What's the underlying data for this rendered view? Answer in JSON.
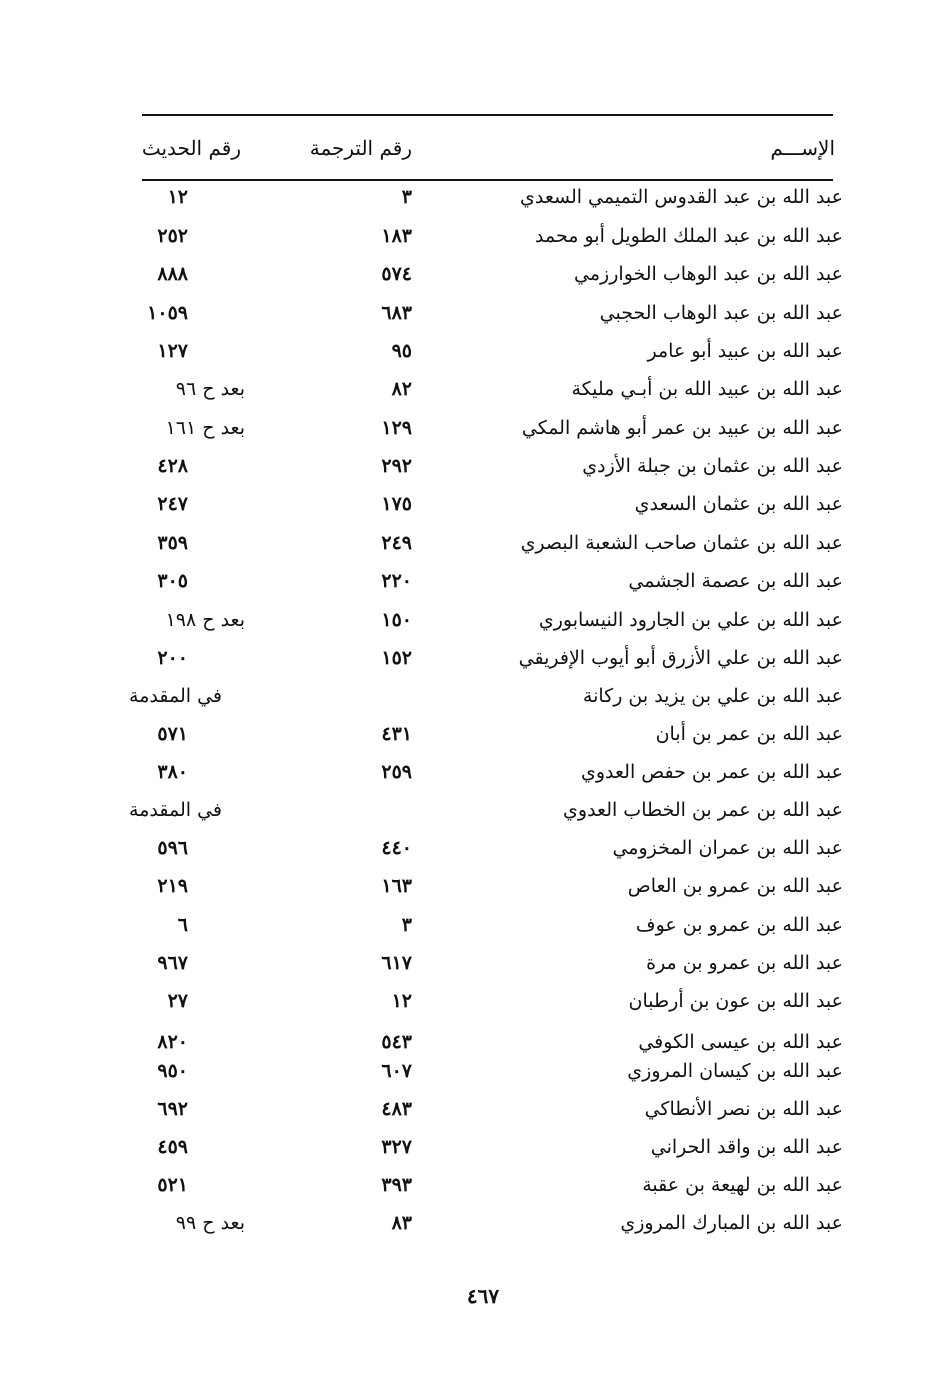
{
  "header": {
    "name": "الإســـم",
    "translation_no": "رقم الترجمة",
    "hadith_no": "رقم الحديث"
  },
  "rows": [
    {
      "name": "عبد الله بن عبد القدوس التميمي السعدي",
      "translation": "٣",
      "hadith": "١٢"
    },
    {
      "name": "عبد الله بن عبد الملك الطويل أبو محمد",
      "translation": "١٨٣",
      "hadith": "٢٥٢"
    },
    {
      "name": "عبد الله بن عبد الوهاب الخوارزمي",
      "translation": "٥٧٤",
      "hadith": "٨٨٨"
    },
    {
      "name": "عبد الله بن عبد الوهاب الحجبي",
      "translation": "٦٨٣",
      "hadith": "١٠٥٩"
    },
    {
      "name": "عبد الله بن عبيد أبو عامر",
      "translation": "٩٥",
      "hadith": "١٢٧"
    },
    {
      "name": "عبد الله بن عبيد الله بن أبـي مليكة",
      "translation": "٨٢",
      "hadith": "بعد ح ٩٦"
    },
    {
      "name": "عبد الله بن عبيد بن عمر أبو هاشم المكي",
      "translation": "١٢٩",
      "hadith": "بعد ح ١٦١"
    },
    {
      "name": "عبد الله بن عثمان بن جبلة الأزدي",
      "translation": "٢٩٢",
      "hadith": "٤٢٨"
    },
    {
      "name": "عبد الله بن عثمان السعدي",
      "translation": "١٧٥",
      "hadith": "٢٤٧"
    },
    {
      "name": "عبد الله بن عثمان صاحب الشعبة البصري",
      "translation": "٢٤٩",
      "hadith": "٣٥٩"
    },
    {
      "name": "عبد الله بن عصمة الجشمي",
      "translation": "٢٢٠",
      "hadith": "٣٠٥"
    },
    {
      "name": "عبد الله بن علي بن الجارود النيسابوري",
      "translation": "١٥٠",
      "hadith": "بعد ح ١٩٨"
    },
    {
      "name": "عبد الله بن علي الأزرق أبو أيوب الإفريقي",
      "translation": "١٥٢",
      "hadith": "٢٠٠"
    },
    {
      "name": "عبد الله بن علي بن يزيد بن ركانة",
      "translation": "",
      "hadith": "في المقدمة"
    },
    {
      "name": "عبد الله بن عمر بن أبان",
      "translation": "٤٣١",
      "hadith": "٥٧١"
    },
    {
      "name": "عبد الله بن عمر بن حفص العدوي",
      "translation": "٢٥٩",
      "hadith": "٣٨٠"
    },
    {
      "name": "عبد الله بن عمر بن الخطاب العدوي",
      "translation": "",
      "hadith": "في المقدمة"
    },
    {
      "name": "عبد الله بن عمران المخزومي",
      "translation": "٤٤٠",
      "hadith": "٥٩٦"
    },
    {
      "name": "عبد الله بن عمرو بن العاص",
      "translation": "١٦٣",
      "hadith": "٢١٩"
    },
    {
      "name": "عبد الله بن عمرو بن عوف",
      "translation": "٣",
      "hadith": "٦"
    },
    {
      "name": "عبد الله بن عمرو بن مرة",
      "translation": "٦١٧",
      "hadith": "٩٦٧"
    },
    {
      "name": "عبد الله بن عون بن أرطبان",
      "translation": "١٢",
      "hadith": "٢٧"
    },
    {
      "name": "عبد الله بن عيسى الكوفي",
      "translation": "٥٤٣",
      "hadith": "٨٢٠"
    },
    {
      "name": "عبد الله بن كيسان المروزي",
      "translation": "٦٠٧",
      "hadith": "٩٥٠"
    },
    {
      "name": "عبد الله بن نصر الأنطاكي",
      "translation": "٤٨٣",
      "hadith": "٦٩٢"
    },
    {
      "name": "عبد الله بن واقد الحراني",
      "translation": "٣٢٧",
      "hadith": "٤٥٩"
    },
    {
      "name": "عبد الله بن لهيعة بن عقبة",
      "translation": "٣٩٣",
      "hadith": "٥٢١"
    },
    {
      "name": "عبد الله بن المبارك المروزي",
      "translation": "٨٣",
      "hadith": "بعد ح ٩٩"
    }
  ],
  "page_number": "٤٦٧"
}
